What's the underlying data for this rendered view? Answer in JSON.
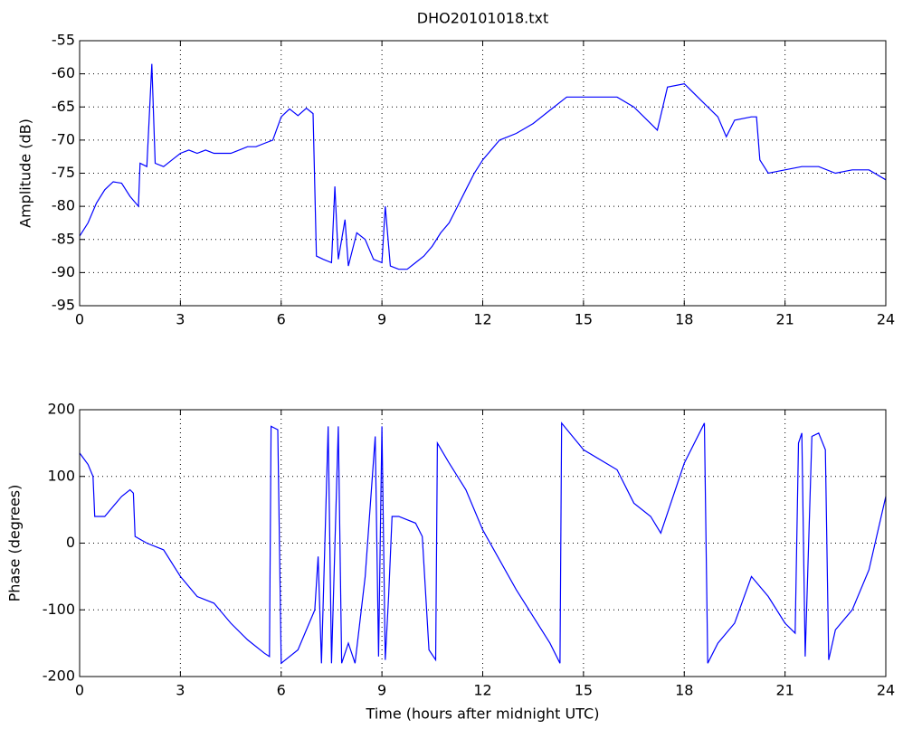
{
  "chart_data": [
    {
      "type": "line",
      "title": "DHO20101018.txt",
      "y_label": "Amplitude (dB)",
      "xlim": [
        0,
        24
      ],
      "xticks": [
        0,
        3,
        6,
        9,
        12,
        15,
        18,
        21,
        24
      ],
      "ylim": [
        -95,
        -55
      ],
      "yticks": [
        -95,
        -90,
        -85,
        -80,
        -75,
        -70,
        -65,
        -60,
        -55
      ],
      "grid": true,
      "x": [
        0,
        0.25,
        0.5,
        0.75,
        1,
        1.25,
        1.5,
        1.75,
        1.8,
        2,
        2.15,
        2.25,
        2.5,
        2.75,
        3,
        3.25,
        3.5,
        3.75,
        4,
        4.25,
        4.5,
        4.75,
        5,
        5.25,
        5.5,
        5.75,
        6,
        6.25,
        6.5,
        6.75,
        6.95,
        7.05,
        7.25,
        7.5,
        7.6,
        7.7,
        7.9,
        8,
        8.25,
        8.5,
        8.75,
        9,
        9.1,
        9.25,
        9.5,
        9.75,
        10,
        10.25,
        10.5,
        10.75,
        11,
        11.25,
        11.5,
        11.75,
        12,
        12.5,
        13,
        13.5,
        14,
        14.5,
        15,
        15.5,
        16,
        16.5,
        17,
        17.2,
        17.5,
        18,
        18.5,
        19,
        19.25,
        19.5,
        20,
        20.15,
        20.25,
        20.5,
        21,
        21.5,
        22,
        22.5,
        23,
        23.5,
        24
      ],
      "series": [
        {
          "color": "#0000ff",
          "values": [
            -84.5,
            -82.5,
            -79.5,
            -77.5,
            -76.3,
            -76.5,
            -78.5,
            -80,
            -73.5,
            -74,
            -58.5,
            -73.5,
            -74,
            -73,
            -72,
            -71.5,
            -72,
            -71.5,
            -72,
            -72,
            -72,
            -71.5,
            -71,
            -71,
            -70.5,
            -70,
            -66.5,
            -65.3,
            -66.3,
            -65.2,
            -66,
            -87.5,
            -88,
            -88.5,
            -77,
            -88,
            -82,
            -89,
            -84,
            -85,
            -88,
            -88.5,
            -80,
            -89,
            -89.5,
            -89.5,
            -88.5,
            -87.5,
            -86,
            -84,
            -82.5,
            -80,
            -77.5,
            -75,
            -73,
            -70,
            -69,
            -67.5,
            -65.5,
            -63.5,
            -63.5,
            -63.5,
            -63.5,
            -65,
            -67.5,
            -68.5,
            -62,
            -61.5,
            -64,
            -66.5,
            -69.5,
            -67,
            -66.5,
            -66.5,
            -73,
            -75,
            -74.5,
            -74,
            -74,
            -75,
            -74.5,
            -74.5,
            -76
          ]
        }
      ]
    },
    {
      "type": "line",
      "x_label": "Time (hours after midnight UTC)",
      "y_label": "Phase (degrees)",
      "xlim": [
        0,
        24
      ],
      "xticks": [
        0,
        3,
        6,
        9,
        12,
        15,
        18,
        21,
        24
      ],
      "ylim": [
        -200,
        200
      ],
      "yticks": [
        -200,
        -100,
        0,
        100,
        200
      ],
      "grid": true,
      "x": [
        0,
        0.25,
        0.4,
        0.45,
        0.75,
        1,
        1.25,
        1.5,
        1.6,
        1.65,
        2,
        2.5,
        3,
        3.5,
        4,
        4.5,
        5,
        5.5,
        5.65,
        5.7,
        5.9,
        6,
        6.5,
        7,
        7.1,
        7.2,
        7.4,
        7.5,
        7.7,
        7.8,
        8,
        8.2,
        8.5,
        8.8,
        8.9,
        9,
        9.1,
        9.2,
        9.3,
        9.5,
        10,
        10.2,
        10.4,
        10.6,
        10.65,
        11,
        11.5,
        12,
        13,
        14,
        14.3,
        14.35,
        15,
        16,
        16.5,
        17,
        17.3,
        17.6,
        18,
        18.6,
        18.7,
        19,
        19.5,
        20,
        20.5,
        21,
        21.3,
        21.4,
        21.5,
        21.6,
        21.8,
        22,
        22.2,
        22.3,
        22.5,
        23,
        23.5,
        24
      ],
      "series": [
        {
          "color": "#0000ff",
          "values": [
            135,
            118,
            100,
            40,
            40,
            55,
            70,
            80,
            75,
            10,
            0,
            -10,
            -50,
            -80,
            -90,
            -120,
            -145,
            -165,
            -170,
            175,
            170,
            -180,
            -160,
            -100,
            -20,
            -180,
            175,
            -180,
            175,
            -180,
            -150,
            -180,
            -50,
            160,
            -170,
            175,
            -175,
            -80,
            40,
            40,
            30,
            10,
            -160,
            -175,
            150,
            120,
            80,
            20,
            -70,
            -150,
            -180,
            180,
            140,
            110,
            60,
            40,
            15,
            60,
            120,
            180,
            -180,
            -150,
            -120,
            -50,
            -80,
            -120,
            -135,
            150,
            165,
            -170,
            160,
            165,
            140,
            -175,
            -130,
            -100,
            -40,
            70
          ]
        }
      ]
    }
  ]
}
